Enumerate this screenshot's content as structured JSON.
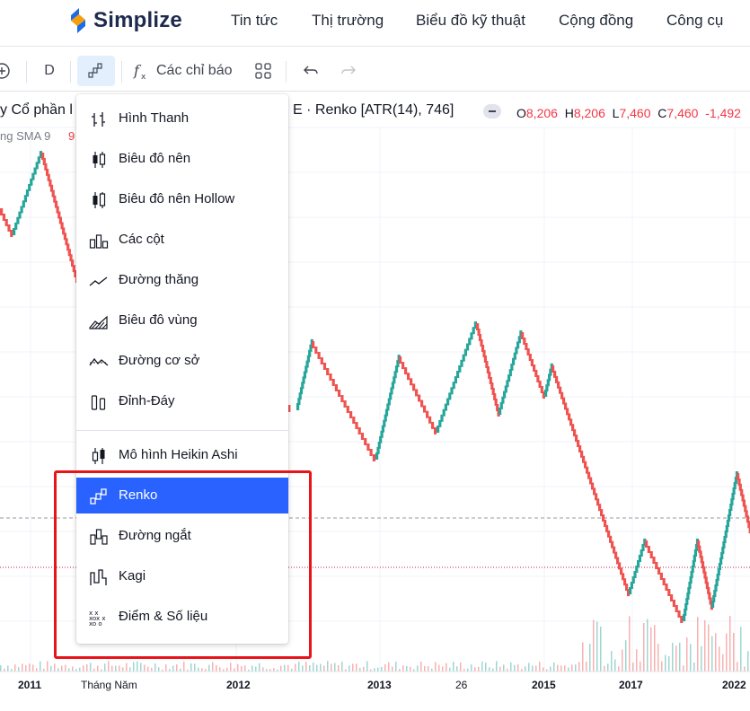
{
  "nav": {
    "logo": "Simplize",
    "items": [
      "Tin tức",
      "Thị trường",
      "Biểu đồ kỹ thuật",
      "Cộng đồng",
      "Công cụ"
    ]
  },
  "toolbar": {
    "interval": "D",
    "indicators_label": "Các chỉ báo"
  },
  "legend": {
    "title_left": "y Cổ phần l",
    "title_right": "E · Renko [ATR(14), 746]",
    "sma_label": "ng SMA 9",
    "sma_value": "9",
    "ohlc": [
      {
        "k": "O",
        "v": "8,206"
      },
      {
        "k": "H",
        "v": "8,206"
      },
      {
        "k": "L",
        "v": "7,460"
      },
      {
        "k": "C",
        "v": "7,460"
      },
      {
        "k": "",
        "v": "-1,492"
      }
    ]
  },
  "xaxis": [
    "2011",
    "Tháng Năm",
    "2012",
    "2013",
    "26",
    "2015",
    "2017",
    "2022"
  ],
  "chart_type_menu": {
    "items": [
      {
        "icon": "bars-icon",
        "label": "Hình Thanh"
      },
      {
        "icon": "candles-icon",
        "label": "Biêu đô nên"
      },
      {
        "icon": "hollow-candles-icon",
        "label": "Biêu đô nên Hollow"
      },
      {
        "icon": "columns-icon",
        "label": "Các cột"
      },
      {
        "icon": "line-icon",
        "label": "Đường thăng"
      },
      {
        "icon": "area-icon",
        "label": "Biêu đô vùng"
      },
      {
        "icon": "baseline-icon",
        "label": "Đường cơ sở"
      },
      {
        "icon": "high-low-icon",
        "label": "Đỉnh-Đáy"
      },
      {
        "icon": "heikin-ashi-icon",
        "label": "Mô hình Heikin Ashi"
      },
      {
        "icon": "renko-icon",
        "label": "Renko"
      },
      {
        "icon": "line-break-icon",
        "label": "Đường ngắt"
      },
      {
        "icon": "kagi-icon",
        "label": "Kagi"
      },
      {
        "icon": "point-figure-icon",
        "label": "Điểm & Số liệu"
      }
    ],
    "selected": "Renko"
  },
  "colors": {
    "up": "#26a69a",
    "down": "#ef5350",
    "accent": "#2962ff",
    "highlight_box": "#e8141a"
  }
}
